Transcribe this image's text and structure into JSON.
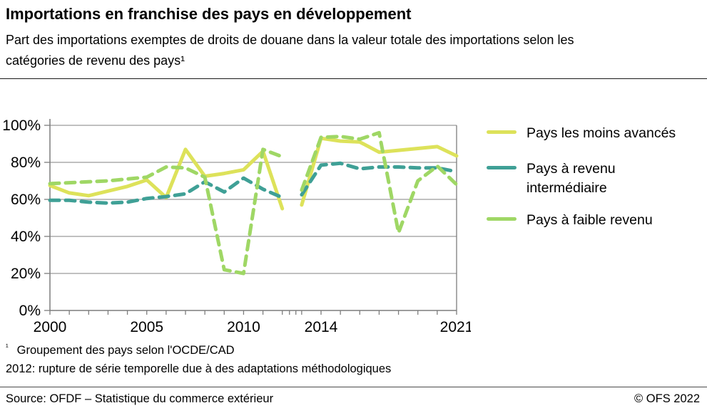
{
  "header": {
    "title": "Importations en franchise des pays en développement",
    "subtitle": "Part des importations exemptes de droits de douane dans la valeur totale des importations selon les catégories de revenu des pays¹"
  },
  "chart_data": {
    "type": "line",
    "x": [
      2000,
      2001,
      2002,
      2003,
      2004,
      2005,
      2006,
      2007,
      2008,
      2009,
      2010,
      2011,
      2012,
      2013,
      2014,
      2015,
      2016,
      2017,
      2018,
      2019,
      2020,
      2021
    ],
    "x_axis_labels_shown": [
      "2000",
      "2005",
      "2010",
      "2014",
      "2021"
    ],
    "ylim": [
      0,
      100
    ],
    "yticks": [
      0,
      20,
      40,
      60,
      80,
      100
    ],
    "ytick_format": "percent",
    "grid": "horizontal",
    "legend_position": "right",
    "series_break_after": 2012,
    "axis_color": "#7d7d7d",
    "grid_color": "#9b9b9b",
    "series": [
      {
        "name": "Pays les moins avancés",
        "color": "#dde25a",
        "dash": "solid",
        "values": [
          67.5,
          63.5,
          62,
          64.5,
          67,
          70.5,
          61,
          87,
          72.5,
          74,
          76,
          86,
          55,
          57,
          93,
          91.5,
          91,
          85.5,
          86.5,
          87.5,
          88.5,
          83.5
        ]
      },
      {
        "name": "Pays à revenu intermédiaire",
        "color": "#3fa096",
        "dash": "dashed",
        "values": [
          59.5,
          59.5,
          58.5,
          58,
          58.5,
          60.5,
          61.5,
          63,
          69.5,
          64,
          71.5,
          65.5,
          61,
          62.5,
          78.5,
          79.5,
          76.5,
          77.5,
          77.5,
          77,
          77,
          75
        ]
      },
      {
        "name": "Pays à faible revenu",
        "color": "#9fd765",
        "dash": "dashed",
        "values": [
          68.5,
          69,
          69.5,
          70,
          71,
          72,
          77.5,
          77,
          72,
          22,
          20,
          87,
          83,
          65,
          93.5,
          94,
          92.5,
          96,
          42,
          70,
          78,
          68
        ]
      }
    ]
  },
  "footnotes": {
    "marker": "¹",
    "note1": "Groupement des pays selon l'OCDE/CAD",
    "note2": "2012: rupture de série temporelle due à des adaptations méthodologiques"
  },
  "footer": {
    "source": "Source: OFDF – Statistique du commerce extérieur",
    "copyright": "© OFS 2022"
  }
}
